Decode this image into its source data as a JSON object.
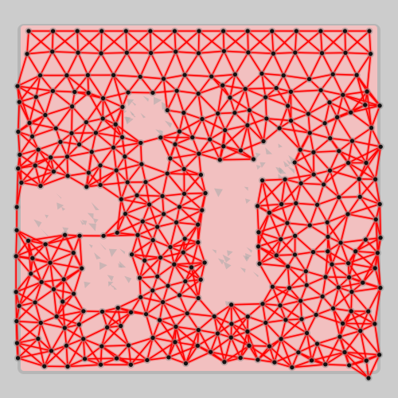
{
  "colors": {
    "background": "#cccccc",
    "mesh_fill": "#f2c0c0",
    "grey_debris": "#a9a9a9",
    "edge": "#ff0000",
    "edge_dark": "#cc0000",
    "node": "#111111",
    "halo": "#8c8c8c"
  },
  "mesh": {
    "title": "",
    "seed": 7,
    "style": "triangulated mesh with red edges and black nodes"
  }
}
